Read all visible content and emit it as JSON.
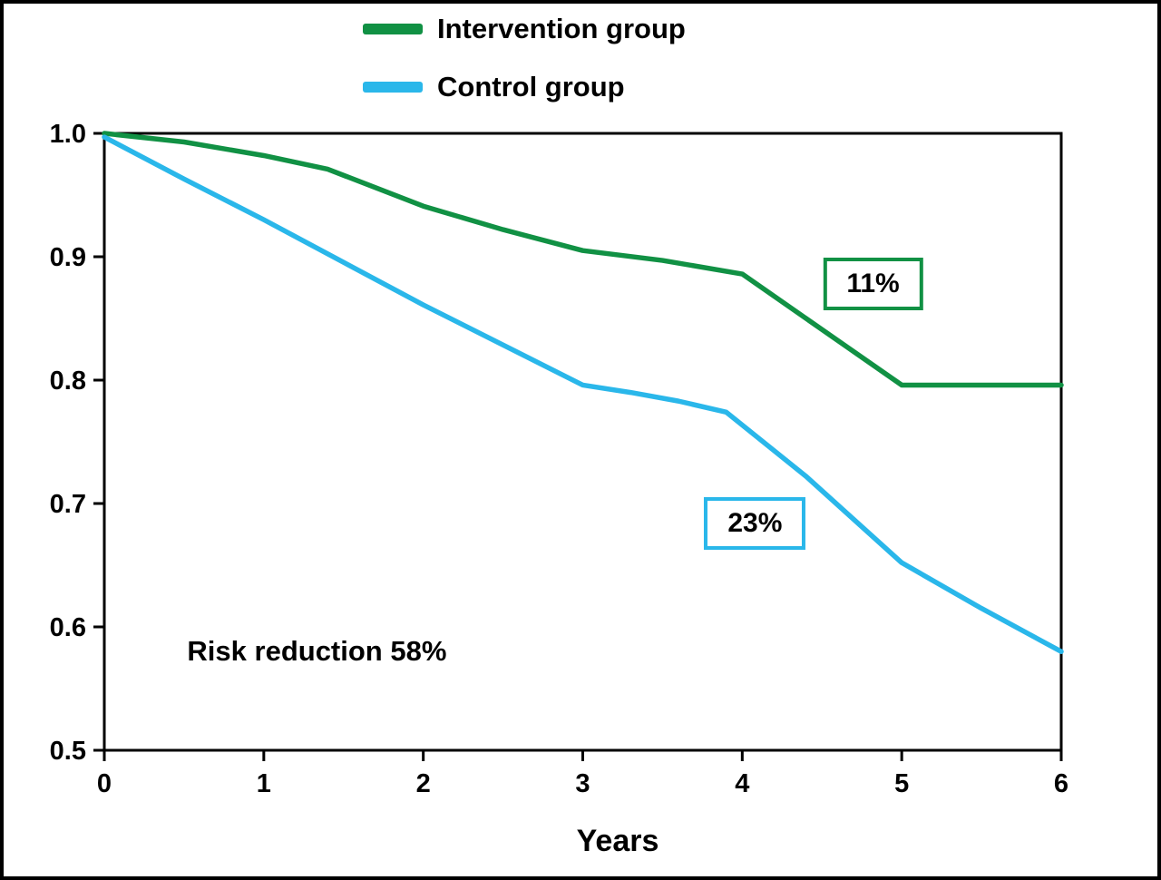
{
  "chart_data": {
    "type": "line",
    "title": "",
    "xlabel": "Years",
    "ylabel": "",
    "xlim": [
      0,
      6
    ],
    "ylim": [
      0.5,
      1.0
    ],
    "x_ticks": [
      0,
      1,
      2,
      3,
      4,
      5,
      6
    ],
    "x_tick_labels": [
      "0",
      "1",
      "2",
      "3",
      "4",
      "5",
      "6"
    ],
    "y_ticks": [
      0.5,
      0.6,
      0.7,
      0.8,
      0.9,
      1.0
    ],
    "y_tick_labels": [
      "0.5",
      "0.6",
      "0.7",
      "0.8",
      "0.9",
      "1.0"
    ],
    "grid": false,
    "legend_position": "top-center",
    "series": [
      {
        "name": "Intervention group",
        "color": "#119144",
        "points": [
          [
            0,
            1.0
          ],
          [
            0.5,
            0.993
          ],
          [
            1,
            0.982
          ],
          [
            1.4,
            0.971
          ],
          [
            2,
            0.941
          ],
          [
            2.5,
            0.922
          ],
          [
            3,
            0.905
          ],
          [
            3.5,
            0.897
          ],
          [
            4,
            0.886
          ],
          [
            5,
            0.796
          ],
          [
            6,
            0.796
          ]
        ]
      },
      {
        "name": "Control group",
        "color": "#2ab7ea",
        "points": [
          [
            0,
            0.997
          ],
          [
            0.5,
            0.963
          ],
          [
            1,
            0.93
          ],
          [
            2,
            0.861
          ],
          [
            3,
            0.796
          ],
          [
            3.3,
            0.79
          ],
          [
            3.6,
            0.783
          ],
          [
            3.9,
            0.774
          ],
          [
            4.4,
            0.722
          ],
          [
            5,
            0.652
          ],
          [
            5.5,
            0.615
          ],
          [
            6,
            0.58
          ]
        ]
      }
    ],
    "annotations": [
      {
        "id": "intervention-annotation",
        "label": "11%",
        "x": 4.82,
        "y": 0.878,
        "box": true,
        "box_color": "#119144"
      },
      {
        "id": "control-annotation",
        "label": "23%",
        "x": 4.08,
        "y": 0.684,
        "box": true,
        "box_color": "#2ab7ea"
      },
      {
        "id": "risk-reduction-note",
        "label": "Risk reduction 58%",
        "x": 0.52,
        "y": 0.58,
        "box": false
      }
    ]
  }
}
